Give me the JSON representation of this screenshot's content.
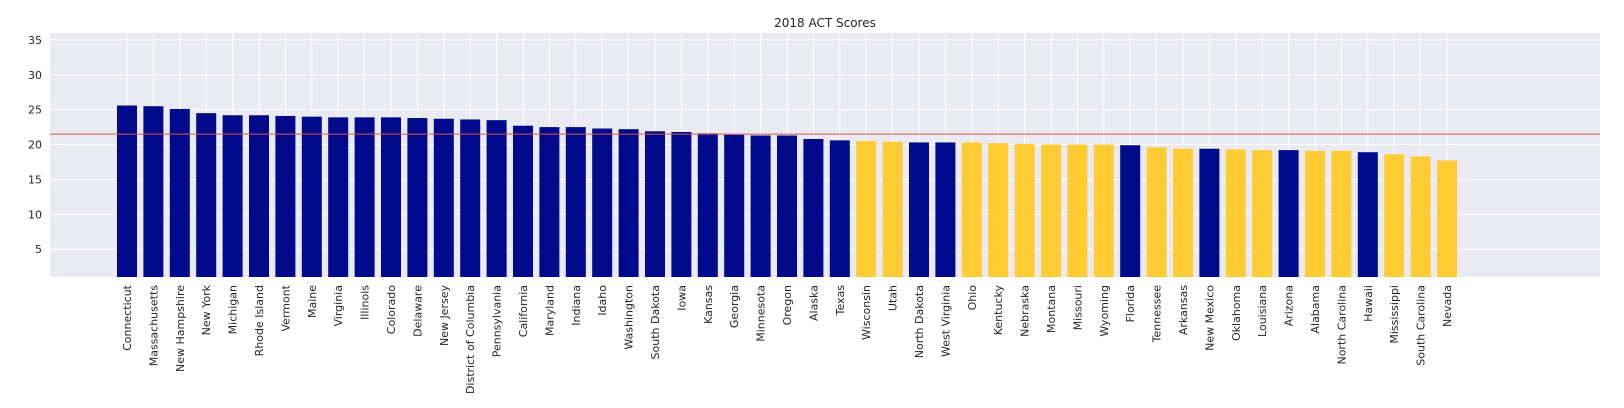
{
  "chart_data": {
    "type": "bar",
    "title": "2018 ACT Scores",
    "xlabel": "",
    "ylabel": "",
    "ylim": [
      1,
      36
    ],
    "yticks": [
      5,
      10,
      15,
      20,
      25,
      30,
      35
    ],
    "grid": true,
    "reference_line": {
      "value": 21.5,
      "color": "#d9534f"
    },
    "colors": {
      "navy": "#000a8a",
      "gold": "#ffcc33",
      "background": "#eaeaf2",
      "grid": "#ffffff"
    },
    "categories": [
      "Connecticut",
      "Massachusetts",
      "New Hampshire",
      "New York",
      "Michigan",
      "Rhode Island",
      "Vermont",
      "Maine",
      "Virginia",
      "Illinois",
      "Colorado",
      "Delaware",
      "New Jersey",
      "District of Columbia",
      "Pennsylvania",
      "California",
      "Maryland",
      "Indiana",
      "Idaho",
      "Washington",
      "South Dakota",
      "Iowa",
      "Kansas",
      "Georgia",
      "Minnesota",
      "Oregon",
      "Alaska",
      "Texas",
      "Wisconsin",
      "Utah",
      "North Dakota",
      "West Virginia",
      "Ohio",
      "Kentucky",
      "Nebraska",
      "Montana",
      "Missouri",
      "Wyoming",
      "Florida",
      "Tennessee",
      "Arkansas",
      "New Mexico",
      "Oklahoma",
      "Louisiana",
      "Arizona",
      "Alabama",
      "North Carolina",
      "Hawaii",
      "Mississippi",
      "South Carolina",
      "Nevada"
    ],
    "values": [
      25.6,
      25.5,
      25.1,
      24.5,
      24.2,
      24.2,
      24.1,
      24.0,
      23.9,
      23.9,
      23.9,
      23.8,
      23.7,
      23.6,
      23.5,
      22.7,
      22.5,
      22.5,
      22.3,
      22.2,
      21.9,
      21.8,
      21.6,
      21.4,
      21.3,
      21.3,
      20.8,
      20.6,
      20.5,
      20.4,
      20.3,
      20.3,
      20.3,
      20.2,
      20.1,
      20.0,
      20.0,
      20.0,
      19.9,
      19.6,
      19.4,
      19.4,
      19.3,
      19.2,
      19.2,
      19.1,
      19.1,
      18.9,
      18.6,
      18.3,
      17.7
    ],
    "bar_colors": [
      "navy",
      "navy",
      "navy",
      "navy",
      "navy",
      "navy",
      "navy",
      "navy",
      "navy",
      "navy",
      "navy",
      "navy",
      "navy",
      "navy",
      "navy",
      "navy",
      "navy",
      "navy",
      "navy",
      "navy",
      "navy",
      "navy",
      "navy",
      "navy",
      "navy",
      "navy",
      "navy",
      "navy",
      "gold",
      "gold",
      "navy",
      "navy",
      "gold",
      "gold",
      "gold",
      "gold",
      "gold",
      "gold",
      "navy",
      "gold",
      "gold",
      "navy",
      "gold",
      "gold",
      "navy",
      "gold",
      "gold",
      "navy",
      "gold",
      "gold",
      "gold"
    ]
  }
}
